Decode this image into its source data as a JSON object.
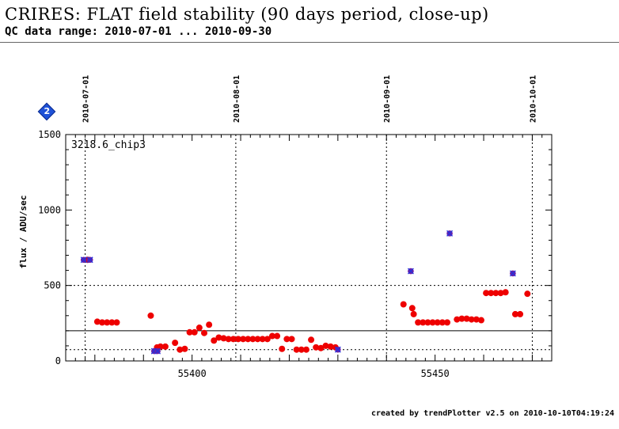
{
  "header": {
    "title": "CRIRES: FLAT field stability (90 days period, close-up)",
    "subtitle": "QC data range: 2010-07-01 ... 2010-09-30"
  },
  "badge": {
    "label": "2",
    "icon": "diamond-info-icon",
    "color": "#1f52d8"
  },
  "footer": {
    "text": "created by trendPlotter v2.5 on 2010-10-10T04:19:24"
  },
  "chart_data": {
    "type": "scatter",
    "title": "",
    "panel_label": "3218.6_chip3",
    "xlabel": "",
    "ylabel": "flux / ADU/sec",
    "xlim": [
      55374,
      55474
    ],
    "ylim": [
      0,
      1500
    ],
    "x_ticks": [
      55400,
      55450
    ],
    "y_ticks": [
      0,
      500,
      1000,
      1500
    ],
    "date_markers": [
      {
        "x": 55378,
        "label": "2010-07-01"
      },
      {
        "x": 55409,
        "label": "2010-08-01"
      },
      {
        "x": 55440,
        "label": "2010-09-01"
      },
      {
        "x": 55470,
        "label": "2010-10-01"
      }
    ],
    "reference_lines": [
      {
        "y": 200,
        "style": "solid"
      },
      {
        "y": 500,
        "style": "dotted"
      },
      {
        "y": 75,
        "style": "dotted"
      }
    ],
    "colors": {
      "points": "#ee0000",
      "outliers": "#6a1fa8",
      "outlier_mark": "#2233dd"
    },
    "series": [
      {
        "name": "",
        "role": "points",
        "x": [
          55378.5,
          55380.5,
          55381.5,
          55382.5,
          55383.5,
          55384.5,
          55391.5,
          55392.8,
          55393.5,
          55394.5,
          55396.5,
          55397.5,
          55398.5,
          55399.5,
          55400.5,
          55401.5,
          55402.5,
          55403.5,
          55404.5,
          55405.5,
          55406.5,
          55407.5,
          55408.5,
          55409.5,
          55410.5,
          55411.5,
          55412.5,
          55413.5,
          55414.5,
          55415.5,
          55416.5,
          55417.5,
          55418.5,
          55419.5,
          55420.5,
          55421.5,
          55422.5,
          55423.5,
          55424.5,
          55425.5,
          55426.5,
          55427.5,
          55428.5,
          55429.5,
          55443.5,
          55445.3,
          55445.6,
          55446.5,
          55447.5,
          55448.5,
          55449.5,
          55450.5,
          55451.5,
          55452.5,
          55454.5,
          55455.5,
          55456.5,
          55457.5,
          55458.5,
          55459.5,
          55460.5,
          55461.5,
          55462.5,
          55463.5,
          55464.5,
          55466.5,
          55467.5,
          55469.0
        ],
        "y": [
          670,
          260,
          255,
          255,
          255,
          255,
          300,
          90,
          95,
          95,
          120,
          75,
          80,
          190,
          190,
          220,
          185,
          240,
          135,
          155,
          150,
          145,
          145,
          145,
          145,
          145,
          145,
          145,
          145,
          145,
          165,
          165,
          80,
          145,
          145,
          75,
          75,
          75,
          140,
          90,
          85,
          100,
          95,
          90,
          375,
          350,
          310,
          255,
          255,
          255,
          255,
          255,
          255,
          255,
          275,
          280,
          280,
          275,
          275,
          270,
          450,
          450,
          450,
          450,
          455,
          310,
          310,
          445
        ]
      },
      {
        "name": "",
        "role": "outliers",
        "x": [
          55377.7,
          55379.0,
          55392.2,
          55392.9,
          55430.0,
          55445.0,
          55453.0,
          55466.0
        ],
        "y": [
          670,
          670,
          65,
          65,
          75,
          595,
          845,
          580
        ]
      }
    ]
  }
}
